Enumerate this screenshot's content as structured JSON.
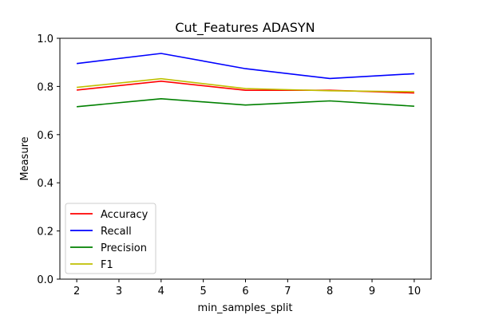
{
  "chart_data": {
    "type": "line",
    "title": "Cut_Features ADASYN",
    "xlabel": "min_samples_split",
    "ylabel": "Measure",
    "x": [
      2,
      4,
      6,
      8,
      10
    ],
    "xlim": [
      1.6,
      10.4
    ],
    "ylim": [
      0.0,
      1.0
    ],
    "xticks": [
      2,
      3,
      4,
      5,
      6,
      7,
      8,
      9,
      10
    ],
    "yticks": [
      "0.0",
      "0.2",
      "0.4",
      "0.6",
      "0.8",
      "1.0"
    ],
    "grid": false,
    "legend_position": "lower-left",
    "series": [
      {
        "name": "Accuracy",
        "color": "#ff0000",
        "values": [
          0.785,
          0.822,
          0.784,
          0.784,
          0.773
        ]
      },
      {
        "name": "Recall",
        "color": "#0000ff",
        "values": [
          0.895,
          0.937,
          0.874,
          0.833,
          0.853
        ]
      },
      {
        "name": "Precision",
        "color": "#008000",
        "values": [
          0.716,
          0.749,
          0.723,
          0.74,
          0.718
        ]
      },
      {
        "name": "F1",
        "color": "#bfbf00",
        "values": [
          0.796,
          0.832,
          0.791,
          0.782,
          0.778
        ]
      }
    ]
  }
}
